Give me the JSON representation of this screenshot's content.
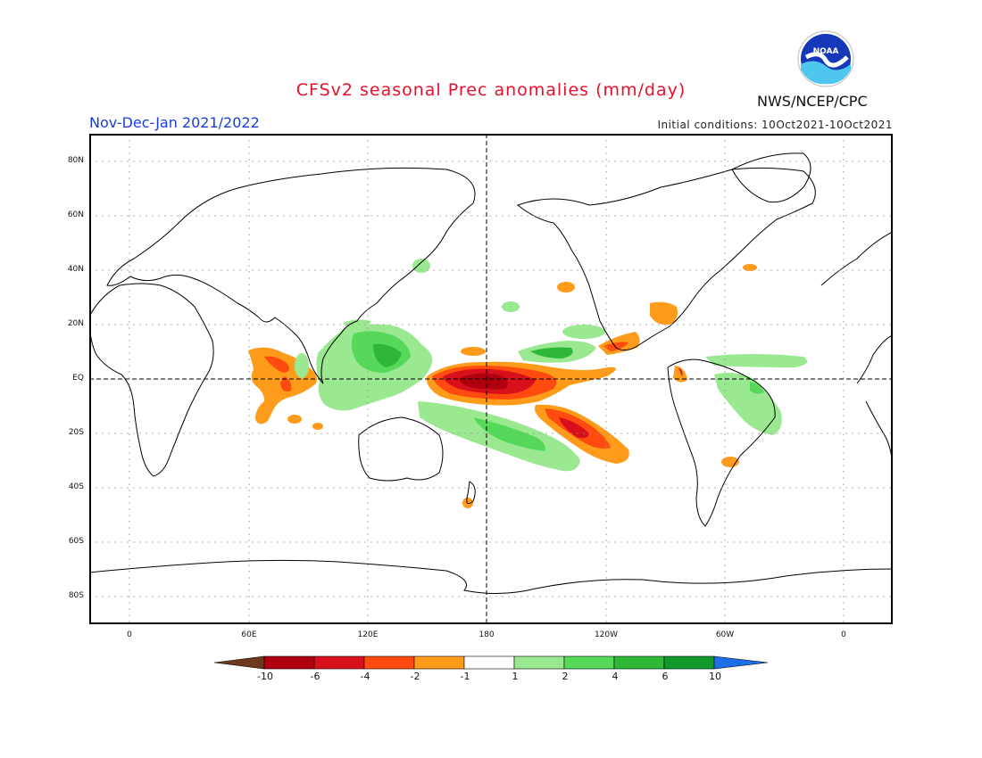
{
  "header": {
    "title": "CFSv2 seasonal Prec anomalies (mm/day)",
    "season": "Nov-Dec-Jan 2021/2022",
    "initial_conditions": "Initial conditions: 10Oct2021-10Oct2021",
    "organization": "NWS/NCEP/CPC",
    "logo_text": "NOAA"
  },
  "map": {
    "lat_labels": [
      "80N",
      "60N",
      "40N",
      "20N",
      "EQ",
      "20S",
      "40S",
      "60S",
      "80S"
    ],
    "lon_labels": [
      "0",
      "60E",
      "120E",
      "180",
      "120W",
      "60W",
      "0"
    ],
    "colors": {
      "land_outline": "#000000",
      "grid": "#999999"
    }
  },
  "colorbar": {
    "labels": [
      "-10",
      "-6",
      "-4",
      "-2",
      "-1",
      "1",
      "2",
      "4",
      "6",
      "10"
    ],
    "colors": [
      "#6b3a1e",
      "#b00010",
      "#d8101c",
      "#ff4a10",
      "#ff9b1a",
      "#ffffff",
      "#9ae890",
      "#56d95a",
      "#2fb838",
      "#11992a",
      "#1e6ee8"
    ]
  }
}
